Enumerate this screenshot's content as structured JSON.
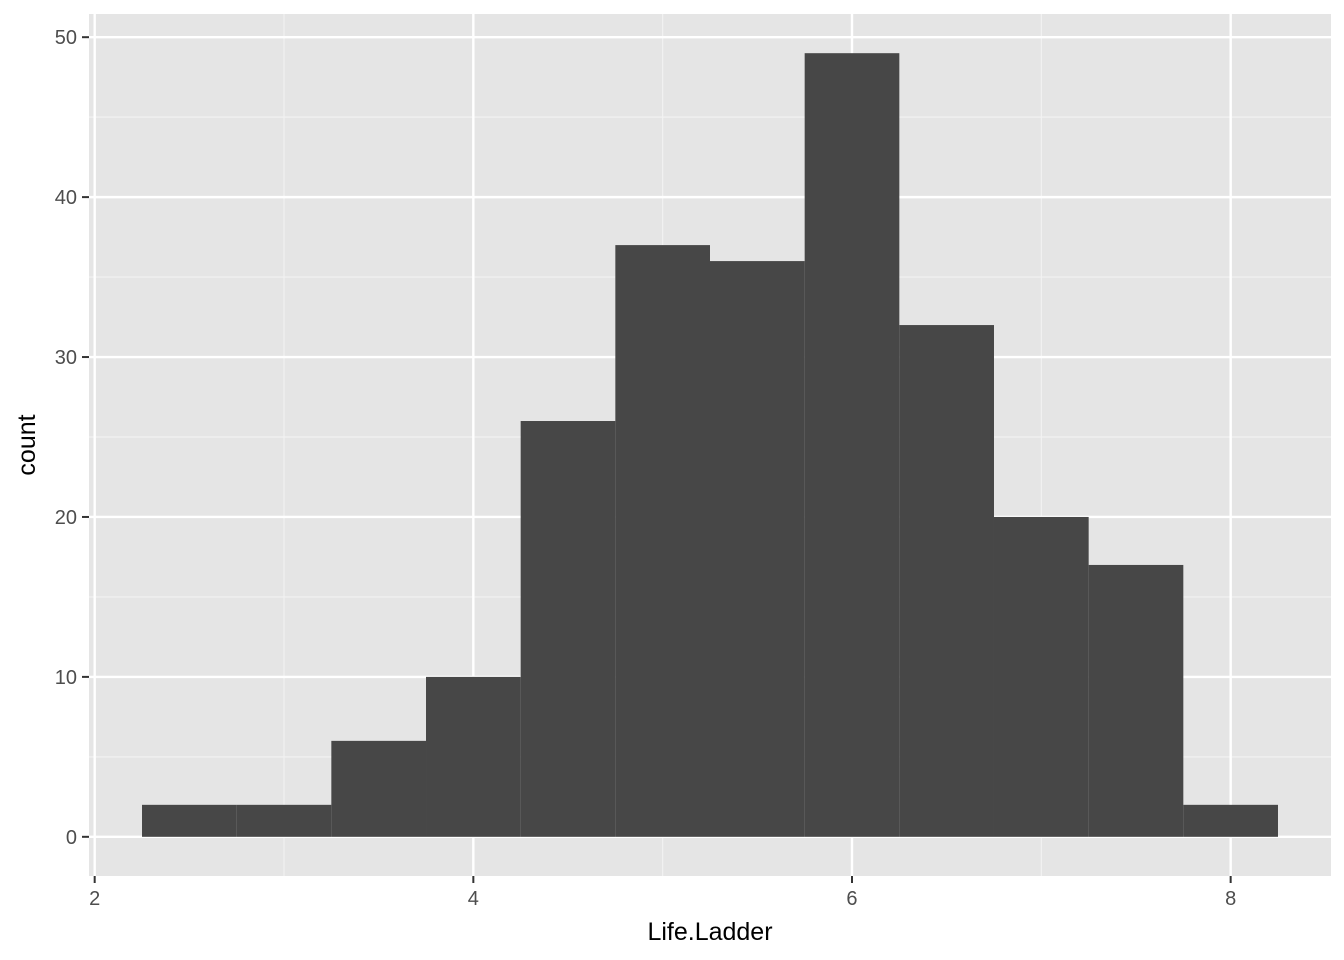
{
  "chart_data": {
    "type": "bar",
    "subtype": "histogram",
    "title": "",
    "xlabel": "Life.Ladder",
    "ylabel": "count",
    "xlim": [
      1.97,
      8.53
    ],
    "ylim": [
      -2.45,
      51.45
    ],
    "x_ticks": [
      2,
      4,
      6,
      8
    ],
    "x_tick_labels": [
      "2",
      "4",
      "6",
      "8"
    ],
    "x_minor_ticks": [
      3,
      5,
      7
    ],
    "y_ticks": [
      0,
      10,
      20,
      30,
      40,
      50
    ],
    "y_tick_labels": [
      "0",
      "10",
      "20",
      "30",
      "40",
      "50"
    ],
    "y_minor_ticks": [
      5,
      15,
      25,
      35,
      45
    ],
    "bin_width": 0.5,
    "bins": [
      {
        "x0": 2.25,
        "x1": 2.75,
        "count": 2
      },
      {
        "x0": 2.75,
        "x1": 3.25,
        "count": 2
      },
      {
        "x0": 3.25,
        "x1": 3.75,
        "count": 6
      },
      {
        "x0": 3.75,
        "x1": 4.25,
        "count": 10
      },
      {
        "x0": 4.25,
        "x1": 4.75,
        "count": 26
      },
      {
        "x0": 4.75,
        "x1": 5.25,
        "count": 37
      },
      {
        "x0": 5.25,
        "x1": 5.75,
        "count": 36
      },
      {
        "x0": 5.75,
        "x1": 6.25,
        "count": 49
      },
      {
        "x0": 6.25,
        "x1": 6.75,
        "count": 32
      },
      {
        "x0": 6.75,
        "x1": 7.25,
        "count": 20
      },
      {
        "x0": 7.25,
        "x1": 7.75,
        "count": 17
      },
      {
        "x0": 7.75,
        "x1": 8.25,
        "count": 2
      }
    ],
    "grid": true,
    "legend": "none",
    "colors": {
      "bar": "#474747",
      "panel": "#e5e5e5",
      "grid_major": "#ffffff",
      "grid_minor": "#f2f2f2",
      "tick": "#333333"
    }
  }
}
